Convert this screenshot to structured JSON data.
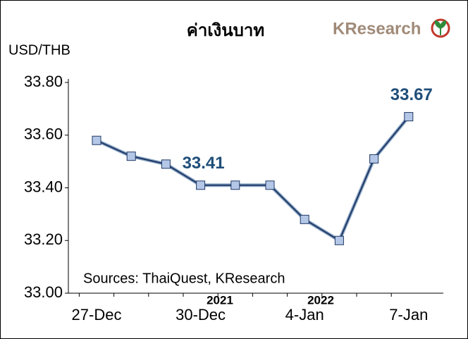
{
  "chart_data": {
    "type": "line",
    "title": "ค่าเงินบาท",
    "logo": "KResearch",
    "y_axis_label": "USD/THB",
    "source": "Sources: ThaiQuest, KResearch",
    "year_labels": [
      "2021",
      "2022"
    ],
    "categories": [
      "27-Dec",
      null,
      null,
      "30-Dec",
      null,
      null,
      "4-Jan",
      null,
      null,
      "7-Jan"
    ],
    "series": [
      {
        "name": "USD/THB",
        "color": "#1f3864",
        "marker_color": "#b4c7e7",
        "values": [
          33.58,
          33.52,
          33.49,
          33.41,
          33.41,
          33.41,
          33.28,
          33.2,
          33.51,
          33.67
        ]
      }
    ],
    "labeled_points": [
      3,
      9
    ],
    "label_color": "#1f4e79",
    "ylim": [
      33.0,
      33.8
    ],
    "yticks": [
      {
        "value": 33.0,
        "label": "33.00"
      },
      {
        "value": 33.2,
        "label": "33.20"
      },
      {
        "value": 33.4,
        "label": "33.40"
      },
      {
        "value": 33.6,
        "label": "33.60"
      },
      {
        "value": 33.8,
        "label": "33.80"
      }
    ]
  }
}
